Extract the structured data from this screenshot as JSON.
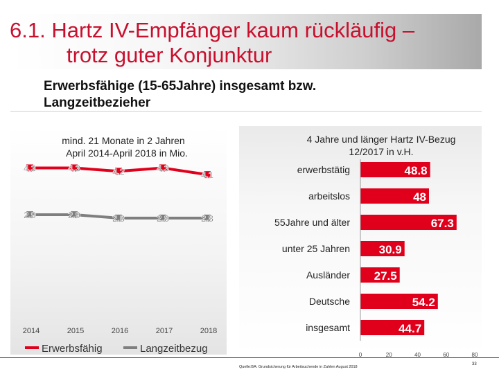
{
  "slide": {
    "title_line_1": "6.1. Hartz IV-Empfänger kaum rückläufig –",
    "title_line_2": "trotz guter Konjunktur",
    "subtitle_line_1": "Erwerbsfähige (15-65Jahre) insgesamt bzw.",
    "subtitle_line_2": "Langzeitbezieher",
    "source": "Quelle:BA: Grundsicherung für Arbeitsuchende in Zahlen August 2018",
    "page_number": "33"
  },
  "chart_data": [
    {
      "type": "line",
      "title": "mind. 21 Monate in 2 Jahren April 2014-April 2018 in Mio.",
      "title_lines": [
        "mind. 21 Monate in 2 Jahren",
        "April 2014-April 2018 in Mio."
      ],
      "categories": [
        "2014",
        "2015",
        "2016",
        "2017",
        "2018"
      ],
      "series": [
        {
          "name": "Erwerbsfähig",
          "values": [
            4.3,
            4.3,
            4.2,
            4.3,
            4.1
          ],
          "labels": [
            "4.3",
            "4.3",
            "4.2",
            "4.3",
            "4.1"
          ],
          "color": "#e0001b"
        },
        {
          "name": "Langzeitbezug",
          "values": [
            2.9,
            2.9,
            2.8,
            2.8,
            2.8
          ],
          "labels": [
            "2.9",
            "2.9",
            "2.8",
            "2.8",
            "2.8"
          ],
          "color": "#7f7f7f"
        }
      ],
      "ylim": [
        0,
        4.6
      ],
      "grid": false,
      "legend": "bottom"
    },
    {
      "type": "bar",
      "orientation": "horizontal",
      "title": "4 Jahre und länger Hartz IV-Bezug 12/2017 in v.H.",
      "title_lines": [
        "4 Jahre und länger Hartz IV-Bezug",
        "12/2017 in v.H."
      ],
      "categories": [
        "erwerbstätig",
        "arbeitslos",
        "55Jahre und älter",
        "unter 25 Jahren",
        "Ausländer",
        "Deutsche",
        "insgesamt"
      ],
      "values": [
        48.8,
        48,
        67.3,
        30.9,
        27.5,
        54.2,
        44.7
      ],
      "labels": [
        "48.8",
        "48",
        "67.3",
        "30.9",
        "27.5",
        "54.2",
        "44.7"
      ],
      "xlim": [
        0,
        80
      ],
      "ticks": [
        "0",
        "20",
        "40",
        "60",
        "80"
      ],
      "color": "#e0001b",
      "grid": false
    }
  ]
}
